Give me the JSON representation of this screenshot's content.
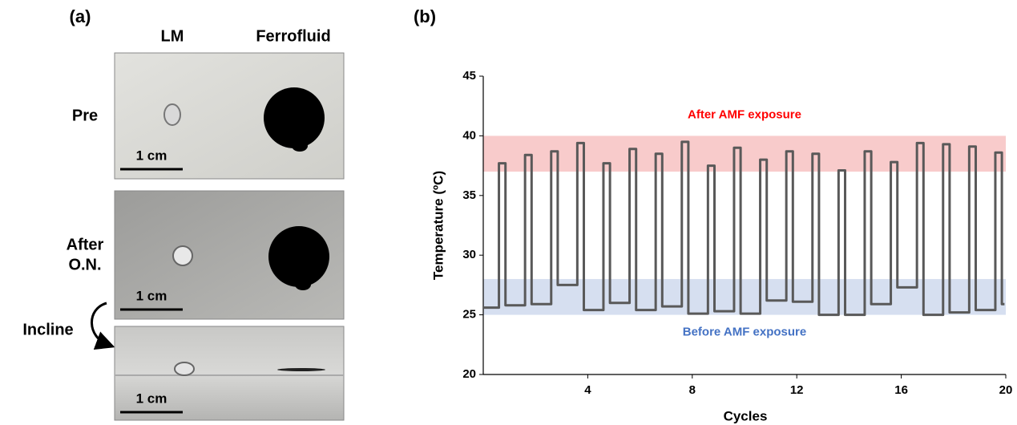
{
  "panel_a": {
    "label": "(a)",
    "columns": [
      "LM",
      "Ferrofluid"
    ],
    "rows": [
      [
        "Pre"
      ],
      [
        "After",
        "O.N."
      ]
    ],
    "incline": "Incline",
    "scale_bars": [
      "1 cm",
      "1 cm",
      "1 cm"
    ]
  },
  "chart_data": {
    "type": "line",
    "panel_label": "(b)",
    "x_label": "Cycles",
    "y_label": "Temperature (ºC)",
    "xlim": [
      0,
      20
    ],
    "xticks": [
      4,
      8,
      12,
      16,
      20
    ],
    "ylim": [
      20,
      45
    ],
    "yticks": [
      20,
      25,
      30,
      35,
      40,
      45
    ],
    "color": "#595959",
    "bands": [
      {
        "label": "After AMF exposure",
        "range": [
          37,
          40
        ],
        "color": "#f8cbcb",
        "label_color": "#ff0000"
      },
      {
        "label": "Before AMF exposure",
        "range": [
          25,
          28
        ],
        "color": "#d6dff0",
        "label_color": "#4472c4"
      }
    ],
    "x": [
      0,
      0.6,
      0.6,
      0.85,
      0.85,
      1.6,
      1.6,
      1.85,
      1.85,
      2.6,
      2.6,
      2.85,
      2.85,
      3.6,
      3.6,
      3.85,
      3.85,
      4.6,
      4.6,
      4.85,
      4.85,
      5.6,
      5.6,
      5.85,
      5.85,
      6.6,
      6.6,
      6.85,
      6.85,
      7.6,
      7.6,
      7.85,
      7.85,
      8.6,
      8.6,
      8.85,
      8.85,
      9.6,
      9.6,
      9.85,
      9.85,
      10.6,
      10.6,
      10.85,
      10.85,
      11.6,
      11.6,
      11.85,
      11.85,
      12.6,
      12.6,
      12.85,
      12.85,
      13.6,
      13.6,
      13.85,
      13.85,
      14.6,
      14.6,
      14.85,
      14.85,
      15.6,
      15.6,
      15.85,
      15.85,
      16.6,
      16.6,
      16.85,
      16.85,
      17.6,
      17.6,
      17.85,
      17.85,
      18.6,
      18.6,
      18.85,
      18.85,
      19.6,
      19.6,
      19.85,
      19.85,
      19.95
    ],
    "values": [
      25.6,
      25.6,
      37.7,
      37.7,
      25.8,
      25.8,
      38.4,
      38.4,
      25.9,
      25.9,
      38.7,
      38.7,
      27.5,
      27.5,
      39.4,
      39.4,
      25.4,
      25.4,
      37.7,
      37.7,
      26.0,
      26.0,
      38.9,
      38.9,
      25.4,
      25.4,
      38.5,
      38.5,
      25.7,
      25.7,
      39.5,
      39.5,
      25.1,
      25.1,
      37.5,
      37.5,
      25.3,
      25.3,
      39.0,
      39.0,
      25.1,
      25.1,
      38.0,
      38.0,
      26.2,
      26.2,
      38.7,
      38.7,
      26.1,
      26.1,
      38.5,
      38.5,
      25.0,
      25.0,
      37.1,
      37.1,
      25.0,
      25.0,
      38.7,
      38.7,
      25.9,
      25.9,
      37.8,
      37.8,
      27.3,
      27.3,
      39.4,
      39.4,
      25.0,
      25.0,
      39.3,
      39.3,
      25.2,
      25.2,
      39.1,
      39.1,
      25.4,
      25.4,
      38.6,
      38.6,
      25.9,
      25.9
    ]
  }
}
